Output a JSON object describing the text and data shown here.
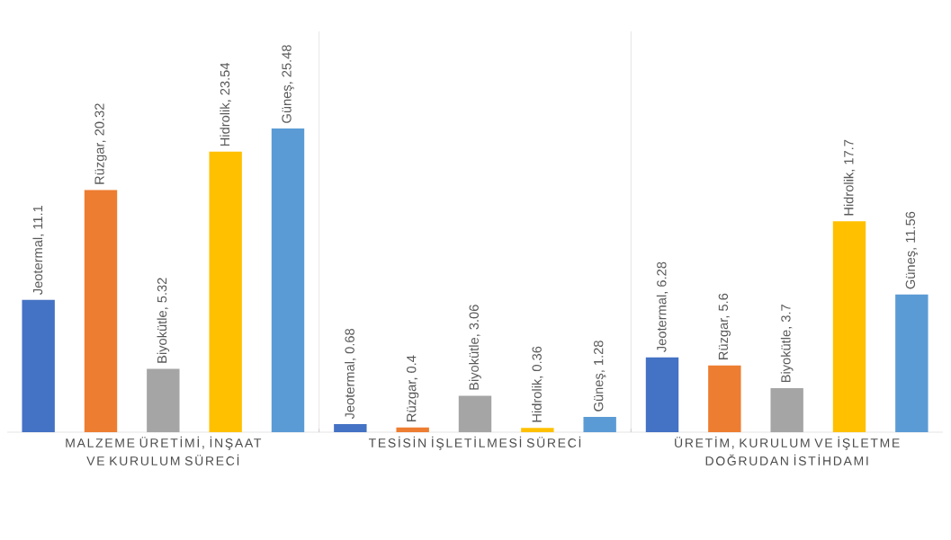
{
  "chart_data": {
    "type": "bar",
    "grid": "x",
    "categories": [
      "MALZEME ÜRETİMİ, İNŞAAT VE KURULUM SÜRECİ",
      "TESİSİN İŞLETİLMESİ SÜRECİ",
      "ÜRETİM, KURULUM VE İŞLETME DOĞRUDAN İSTİHDAMI"
    ],
    "series": [
      {
        "color": "#4472c4",
        "values": [
          11.1,
          0.68,
          6.28
        ],
        "value_labels": [
          "Jeotermal, 11.1",
          "Jeotermal, 0.68",
          "Jeotermal, 6.28"
        ]
      },
      {
        "color": "#ed7d31",
        "values": [
          20.32,
          0.4,
          5.6
        ],
        "value_labels": [
          "Rüzgar, 20.32",
          "Rüzgar, 0.4",
          "Rüzgar, 5.6"
        ]
      },
      {
        "color": "#a5a5a5",
        "values": [
          5.32,
          3.06,
          3.7
        ],
        "value_labels": [
          "Biyokütle, 5.32",
          "Biyokütle, 3.06",
          "Biyokütle, 3.7"
        ]
      },
      {
        "color": "#ffc000",
        "values": [
          23.54,
          0.36,
          17.7
        ],
        "value_labels": [
          "Hidrolik, 23.54",
          "Hidrolik, 0.36",
          "Hidrolik, 17.7"
        ]
      },
      {
        "color": "#5b9bd5",
        "values": [
          25.48,
          1.28,
          11.56
        ],
        "value_labels": [
          "Güneş, 25.48",
          "Güneş, 1.28",
          "Güneş, 11.56"
        ]
      }
    ]
  }
}
